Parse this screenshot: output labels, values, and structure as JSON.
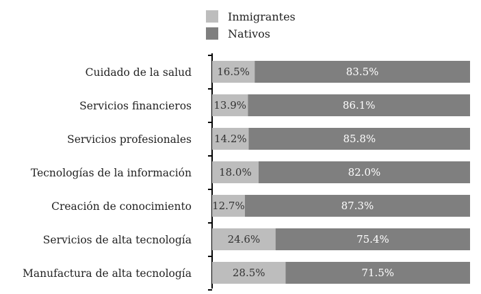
{
  "chart_data": {
    "type": "bar",
    "orientation": "horizontal",
    "stacked": true,
    "categories": [
      "Cuidado de la salud",
      "Servicios financieros",
      "Servicios profesionales",
      "Tecnologías de la información",
      "Creación de conocimiento",
      "Servicios de alta tecnología",
      "Manufactura de alta tecnología"
    ],
    "series": [
      {
        "name": "Inmigrantes",
        "values": [
          16.5,
          13.9,
          14.2,
          18.0,
          12.7,
          24.6,
          28.5
        ],
        "labels": [
          "16.5%",
          "13.9%",
          "14.2%",
          "18.0%",
          "12.7%",
          "24.6%",
          "28.5%"
        ],
        "color": "#bdbdbd",
        "label_color": "#333333"
      },
      {
        "name": "Nativos",
        "values": [
          83.5,
          86.1,
          85.8,
          82.0,
          87.3,
          75.4,
          71.5
        ],
        "labels": [
          "83.5%",
          "86.1%",
          "85.8%",
          "82.0%",
          "87.3%",
          "75.4%",
          "71.5%"
        ],
        "color": "#7f7f7f",
        "label_color": "#ffffff"
      }
    ],
    "xlim": [
      0,
      100
    ],
    "legend_position": "top",
    "grid": false
  }
}
